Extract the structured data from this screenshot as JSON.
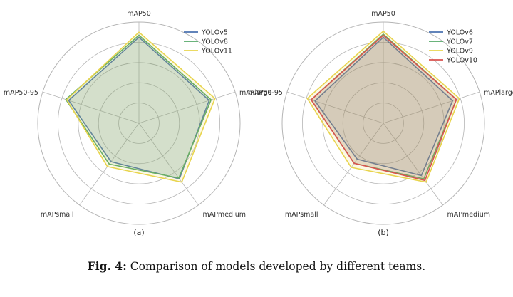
{
  "caption": {
    "prefix": "Fig. 4:",
    "text": "Comparison of models developed by different teams."
  },
  "chart_data": [
    {
      "type": "radar",
      "panel_label": "(a)",
      "axes": [
        "mAP50",
        "mAPlarge",
        "mAPmedium",
        "mAPsmall",
        "mAP50-95"
      ],
      "rlim": [
        0,
        1
      ],
      "grid": true,
      "legend_position": "top-right",
      "series": [
        {
          "name": "YOLOv5",
          "color": "#4c72b0",
          "values": [
            0.85,
            0.73,
            0.68,
            0.47,
            0.73
          ]
        },
        {
          "name": "YOLOv8",
          "color": "#55a868",
          "values": [
            0.87,
            0.75,
            0.67,
            0.5,
            0.76
          ]
        },
        {
          "name": "YOLOv11",
          "color": "#e8d44d",
          "values": [
            0.9,
            0.79,
            0.72,
            0.53,
            0.75
          ]
        }
      ]
    },
    {
      "type": "radar",
      "panel_label": "(b)",
      "axes": [
        "mAP50",
        "mAPlarge",
        "mAPmedium",
        "mAPsmall",
        "mAP50-95"
      ],
      "rlim": [
        0,
        1
      ],
      "grid": true,
      "legend_position": "top-right",
      "series": [
        {
          "name": "YOLOv6",
          "color": "#4c72b0",
          "values": [
            0.85,
            0.72,
            0.64,
            0.44,
            0.71
          ]
        },
        {
          "name": "YOLOv7",
          "color": "#55a868",
          "values": [
            0.88,
            0.76,
            0.68,
            0.49,
            0.75
          ]
        },
        {
          "name": "YOLOv9",
          "color": "#e8d44d",
          "values": [
            0.91,
            0.79,
            0.72,
            0.54,
            0.79
          ]
        },
        {
          "name": "YOLOv10",
          "color": "#d9534f",
          "values": [
            0.87,
            0.76,
            0.7,
            0.49,
            0.75
          ]
        }
      ]
    }
  ]
}
